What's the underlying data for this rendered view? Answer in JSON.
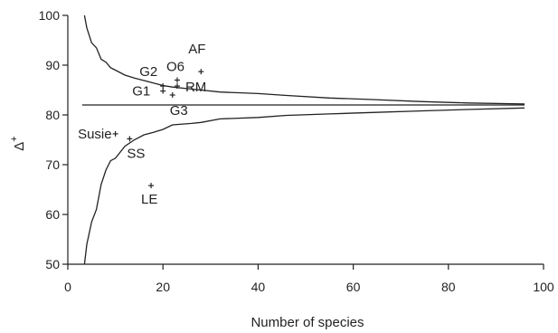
{
  "chart_data": {
    "type": "scatter",
    "title": "",
    "xlabel": "Number of species",
    "ylabel": "Δ+",
    "xlim": [
      0,
      100
    ],
    "ylim": [
      50,
      100
    ],
    "x_ticks": [
      0,
      20,
      40,
      60,
      80,
      100
    ],
    "y_ticks": [
      50,
      60,
      70,
      80,
      90,
      100
    ],
    "grid": false,
    "mean_line": {
      "value": 82.0,
      "x_range": [
        3,
        96
      ]
    },
    "upper_funnel": {
      "x": [
        3.5,
        4,
        5,
        6,
        7,
        8,
        9,
        10,
        12,
        14,
        16,
        18,
        20,
        22,
        25,
        28,
        32,
        40,
        46,
        55,
        64,
        74,
        84,
        96
      ],
      "y": [
        100,
        97.5,
        94.5,
        93.5,
        91.2,
        90.6,
        89.5,
        89.0,
        88.0,
        87.4,
        86.9,
        86.4,
        85.9,
        85.6,
        85.3,
        85.0,
        84.6,
        84.3,
        83.9,
        83.4,
        83.1,
        82.7,
        82.4,
        82.2
      ]
    },
    "lower_funnel": {
      "x": [
        3.5,
        4,
        5,
        6,
        7,
        8,
        9,
        10,
        12,
        14,
        16,
        18,
        20,
        22,
        26,
        28,
        32,
        40,
        46,
        55,
        64,
        74,
        84,
        96
      ],
      "y": [
        50,
        54.0,
        58.5,
        61.0,
        66.0,
        68.9,
        70.8,
        71.3,
        73.7,
        75.0,
        76.0,
        76.5,
        77.1,
        78.0,
        78.3,
        78.5,
        79.2,
        79.5,
        79.9,
        80.2,
        80.5,
        80.8,
        81.1,
        81.4
      ]
    },
    "points": [
      {
        "label": "AF",
        "x": 28.0,
        "y": 88.7
      },
      {
        "label": "O6",
        "x": 23.0,
        "y": 87.0
      },
      {
        "label": "RM",
        "x": 23.0,
        "y": 85.8
      },
      {
        "label": "G2",
        "x": 20.0,
        "y": 85.8
      },
      {
        "label": "G1",
        "x": 20.0,
        "y": 84.8
      },
      {
        "label": "G3",
        "x": 22.0,
        "y": 84.0
      },
      {
        "label": "Susie",
        "x": 10.0,
        "y": 76.2
      },
      {
        "label": "SS",
        "x": 13.0,
        "y": 75.2
      },
      {
        "label": "LE",
        "x": 17.5,
        "y": 65.8
      }
    ]
  }
}
